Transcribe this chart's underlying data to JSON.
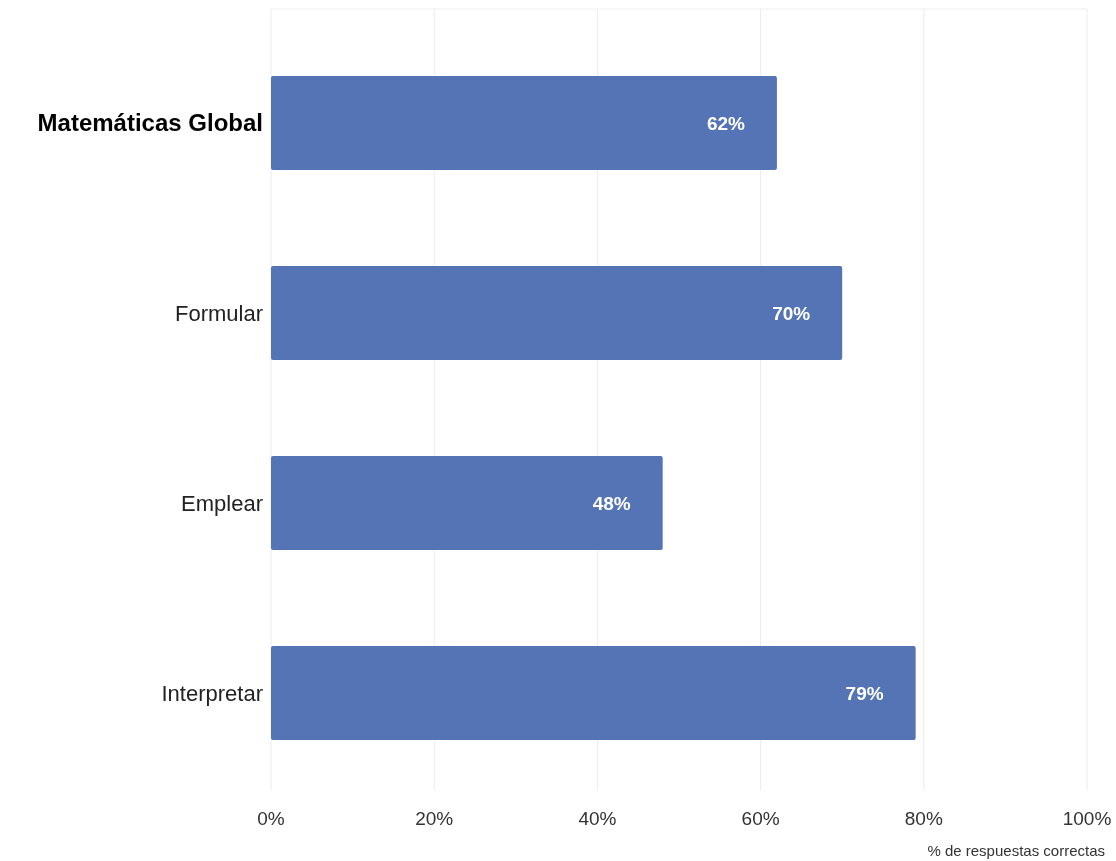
{
  "chart_data": {
    "type": "bar",
    "orientation": "horizontal",
    "categories": [
      "Matemáticas Global",
      "Formular",
      "Emplear",
      "Interpretar"
    ],
    "values": [
      62,
      70,
      48,
      79
    ],
    "color": "#5574b6",
    "value_labels": [
      "62%",
      "70%",
      "48%",
      "79%"
    ],
    "xlim": [
      0,
      100
    ],
    "xticks": [
      {
        "value": 0,
        "label": "0%"
      },
      {
        "value": 20,
        "label": "20%"
      },
      {
        "value": 40,
        "label": "40%"
      },
      {
        "value": 60,
        "label": "60%"
      },
      {
        "value": 80,
        "label": "80%"
      },
      {
        "value": 100,
        "label": "100%"
      }
    ],
    "xlabel": "% de respuestas correctas",
    "grid": "x"
  }
}
